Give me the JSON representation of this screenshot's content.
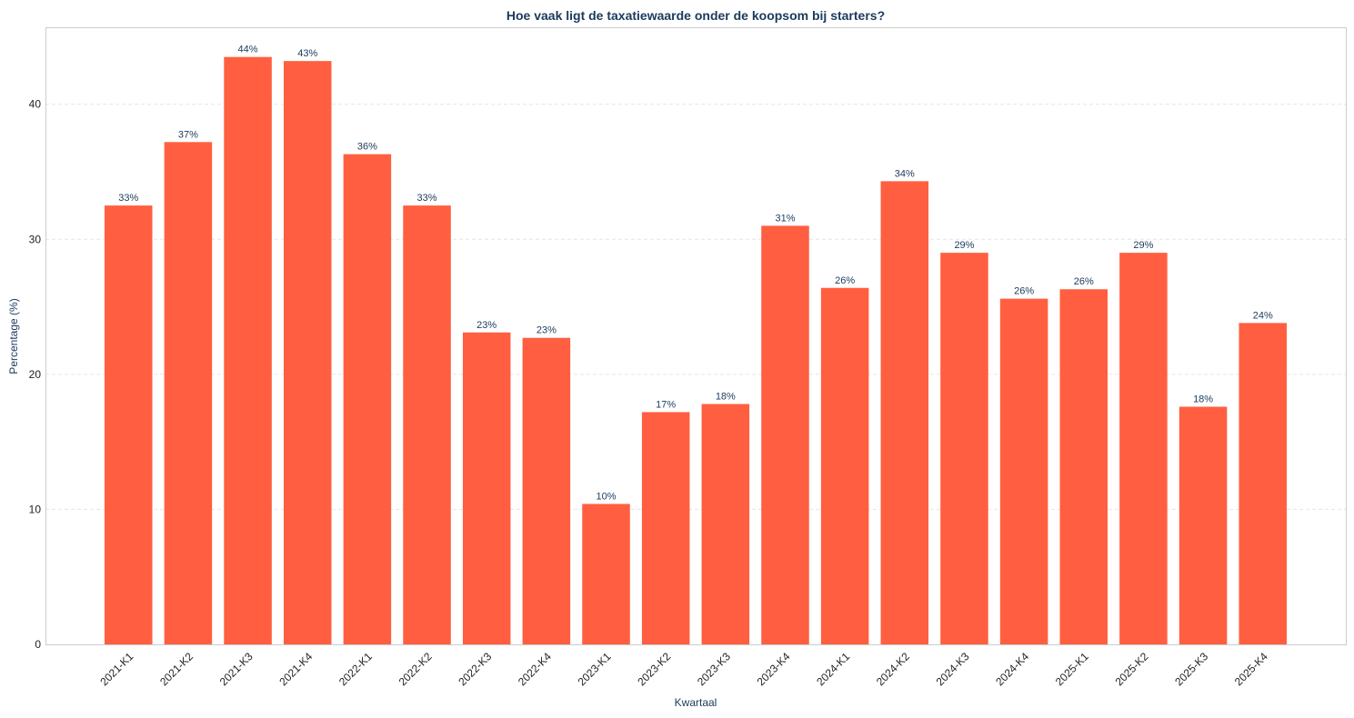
{
  "chart_data": {
    "type": "bar",
    "title": "Hoe vaak ligt de taxatiewaarde onder de koopsom bij starters?",
    "xlabel": "Kwartaal",
    "ylabel": "Percentage (%)",
    "ylim": [
      0,
      45.7
    ],
    "yticks": [
      0,
      10,
      20,
      30,
      40
    ],
    "grid": true,
    "bar_color": "#ff5f40",
    "categories": [
      "2021-K1",
      "2021-K2",
      "2021-K3",
      "2021-K4",
      "2022-K1",
      "2022-K2",
      "2022-K3",
      "2022-K4",
      "2023-K1",
      "2023-K2",
      "2023-K3",
      "2023-K4",
      "2024-K1",
      "2024-K2",
      "2024-K3",
      "2024-K4",
      "2025-K1",
      "2025-K2",
      "2025-K3",
      "2025-K4"
    ],
    "values": [
      32.5,
      37.2,
      43.5,
      43.2,
      36.3,
      32.5,
      23.1,
      22.7,
      10.4,
      17.2,
      17.8,
      31.0,
      26.4,
      34.3,
      29.0,
      25.6,
      26.3,
      29.0,
      17.6,
      23.8
    ],
    "data_labels": [
      "33%",
      "37%",
      "44%",
      "43%",
      "36%",
      "33%",
      "23%",
      "23%",
      "10%",
      "17%",
      "18%",
      "31%",
      "26%",
      "34%",
      "29%",
      "26%",
      "26%",
      "29%",
      "18%",
      "24%"
    ]
  }
}
